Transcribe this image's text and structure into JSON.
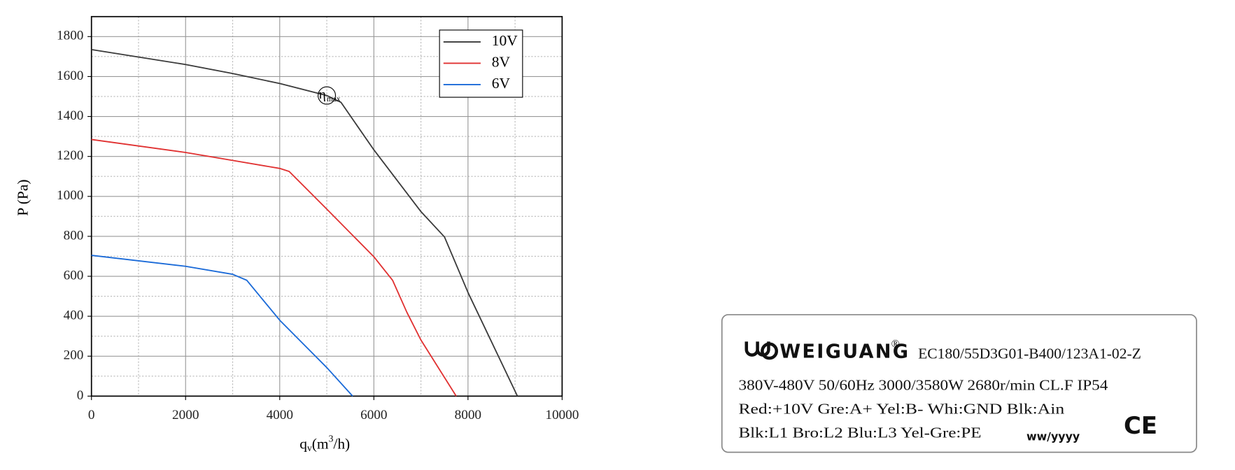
{
  "chart_data": {
    "type": "line",
    "y_label": "P (Pa)",
    "x_label": {
      "base": "q",
      "sub": "v",
      "unit_start": "(m",
      "sup": "3",
      "unit_end": "/h)"
    },
    "xlim": [
      0,
      10000
    ],
    "xticks": [
      0,
      2000,
      4000,
      6000,
      8000,
      10000
    ],
    "ylim": [
      0,
      1900
    ],
    "yticks": [
      0,
      200,
      400,
      600,
      800,
      1000,
      1200,
      1400,
      1600,
      1800
    ],
    "grid": true,
    "legend": "upper right",
    "series": [
      {
        "name": "10V",
        "color": "#3a3a3a",
        "x": [
          0,
          2000,
          3000,
          4000,
          5000,
          5300,
          6000,
          7000,
          7500,
          8000,
          9050
        ],
        "values": [
          1735,
          1660,
          1615,
          1565,
          1505,
          1471,
          1233,
          924,
          797,
          519,
          0
        ]
      },
      {
        "name": "8V",
        "color": "#e03030",
        "x": [
          0,
          2000,
          3000,
          4000,
          4200,
          5000,
          6000,
          6400,
          6700,
          7000,
          7750
        ],
        "values": [
          1285,
          1220,
          1180,
          1140,
          1125,
          936,
          698,
          579,
          420,
          281,
          0
        ]
      },
      {
        "name": "6V",
        "color": "#1a6ad8",
        "x": [
          0,
          2000,
          3000,
          3300,
          4000,
          5000,
          5550
        ],
        "values": [
          705,
          650,
          610,
          580,
          380,
          143,
          0
        ]
      }
    ],
    "annotation": {
      "x": 5000,
      "y": 1505,
      "text": "η",
      "sub": "max"
    }
  },
  "nameplate": {
    "brand": "WEIGUANG",
    "registered": "®",
    "model": "EC180/55D3G01-B400/123A1-02-Z",
    "lines": [
      "380V-480V 50/60Hz 3000/3580W 2680r/min CL.F IP54",
      "Red:+10V  Gre:A+ Yel:B- Whi:GND Blk:Ain",
      "Blk:L1 Bro:L2 Blu:L3  Yel-Gre:PE"
    ],
    "date_code": "ww/yyyy",
    "mark": "CE"
  }
}
